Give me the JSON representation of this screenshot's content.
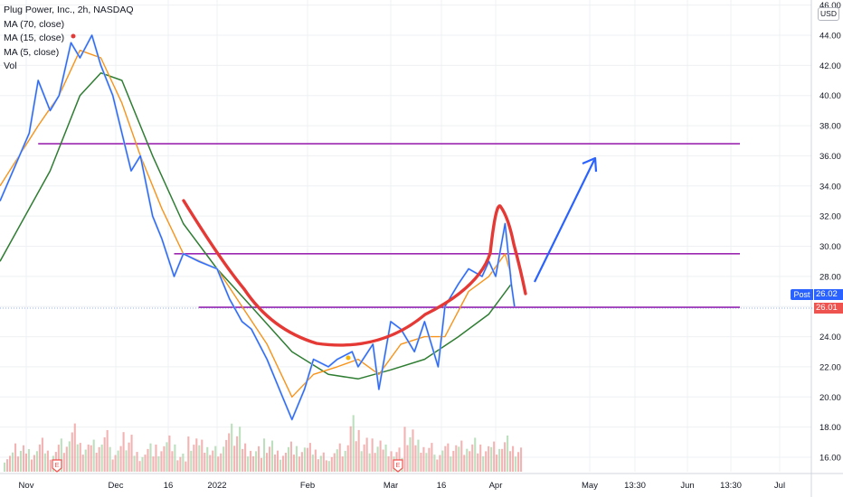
{
  "legend": {
    "symbol": "Plug Power, Inc., 2h, NASDAQ",
    "ma70": "MA (70, close)",
    "ma15": "MA (15, close)",
    "ma5": "MA (5, close)",
    "vol": "Vol"
  },
  "currency_button": "USD",
  "price_tags": {
    "post_label": "Post",
    "post_value": "26.02",
    "last_value": "26.01"
  },
  "chart_data": {
    "type": "line",
    "symbol": "PLUG",
    "interval": "2h",
    "exchange": "NASDAQ",
    "ylim": [
      15,
      46
    ],
    "y_ticks": [
      "16.00",
      "18.00",
      "20.00",
      "22.00",
      "24.00",
      "26.00",
      "28.00",
      "30.00",
      "32.00",
      "34.00",
      "36.00",
      "38.00",
      "40.00",
      "42.00",
      "44.00",
      "46.00"
    ],
    "x_ticks": [
      "Nov",
      "Dec",
      "16",
      "2022",
      "Feb",
      "Mar",
      "16",
      "Apr",
      "May",
      "13:30",
      "Jun",
      "13:30",
      "Jul"
    ],
    "grid": true,
    "colors": {
      "price": "#2962ff",
      "ma70": "#2e7d32",
      "ma15": "#f7931a",
      "ma5": "#a1c4e8",
      "horizontal_lines": "#9c27b0",
      "cup_pattern": "#e53935",
      "projection_arrow": "#2962ff",
      "vol_up": "#a5d6a7",
      "vol_down": "#ef9a9a"
    },
    "price": [
      {
        "x": "Oct 29",
        "y": 33.0
      },
      {
        "x": "Nov 2",
        "y": 37.5
      },
      {
        "x": "Nov 5",
        "y": 41.0
      },
      {
        "x": "Nov 9",
        "y": 39.0
      },
      {
        "x": "Nov 12",
        "y": 40.0
      },
      {
        "x": "Nov 16",
        "y": 43.5
      },
      {
        "x": "Nov 19",
        "y": 42.5
      },
      {
        "x": "Nov 23",
        "y": 44.0
      },
      {
        "x": "Nov 26",
        "y": 42.0
      },
      {
        "x": "Nov 30",
        "y": 40.0
      },
      {
        "x": "Dec 3",
        "y": 37.5
      },
      {
        "x": "Dec 6",
        "y": 35.0
      },
      {
        "x": "Dec 9",
        "y": 36.0
      },
      {
        "x": "Dec 13",
        "y": 32.0
      },
      {
        "x": "Dec 16",
        "y": 30.5
      },
      {
        "x": "Dec 20",
        "y": 28.0
      },
      {
        "x": "Dec 23",
        "y": 29.5
      },
      {
        "x": "Dec 28",
        "y": 29.0
      },
      {
        "x": "Jan 3",
        "y": 28.5
      },
      {
        "x": "Jan 7",
        "y": 26.5
      },
      {
        "x": "Jan 11",
        "y": 25.0
      },
      {
        "x": "Jan 14",
        "y": 24.5
      },
      {
        "x": "Jan 19",
        "y": 22.5
      },
      {
        "x": "Jan 24",
        "y": 20.0
      },
      {
        "x": "Jan 27",
        "y": 18.5
      },
      {
        "x": "Jan 31",
        "y": 20.5
      },
      {
        "x": "Feb 3",
        "y": 22.5
      },
      {
        "x": "Feb 8",
        "y": 22.0
      },
      {
        "x": "Feb 11",
        "y": 22.5
      },
      {
        "x": "Feb 16",
        "y": 23.0
      },
      {
        "x": "Feb 18",
        "y": 22.0
      },
      {
        "x": "Feb 23",
        "y": 23.5
      },
      {
        "x": "Feb 25",
        "y": 20.5
      },
      {
        "x": "Mar 1",
        "y": 25.0
      },
      {
        "x": "Mar 4",
        "y": 24.5
      },
      {
        "x": "Mar 8",
        "y": 23.0
      },
      {
        "x": "Mar 11",
        "y": 25.0
      },
      {
        "x": "Mar 15",
        "y": 22.0
      },
      {
        "x": "Mar 17",
        "y": 26.0
      },
      {
        "x": "Mar 21",
        "y": 27.5
      },
      {
        "x": "Mar 24",
        "y": 28.5
      },
      {
        "x": "Mar 28",
        "y": 28.0
      },
      {
        "x": "Mar 30",
        "y": 29.0
      },
      {
        "x": "Apr 1",
        "y": 28.0
      },
      {
        "x": "Apr 4",
        "y": 31.5
      },
      {
        "x": "Apr 5",
        "y": 29.5
      },
      {
        "x": "Apr 6",
        "y": 27.5
      },
      {
        "x": "Apr 7",
        "y": 26.0
      }
    ],
    "ma70": [
      {
        "x": "Oct 29",
        "y": 29.0
      },
      {
        "x": "Nov 9",
        "y": 35.0
      },
      {
        "x": "Nov 19",
        "y": 40.0
      },
      {
        "x": "Nov 26",
        "y": 41.5
      },
      {
        "x": "Dec 3",
        "y": 41.0
      },
      {
        "x": "Dec 13",
        "y": 36.0
      },
      {
        "x": "Dec 23",
        "y": 31.5
      },
      {
        "x": "Jan 3",
        "y": 28.5
      },
      {
        "x": "Jan 14",
        "y": 26.0
      },
      {
        "x": "Jan 27",
        "y": 23.0
      },
      {
        "x": "Feb 8",
        "y": 21.5
      },
      {
        "x": "Feb 18",
        "y": 21.2
      },
      {
        "x": "Mar 1",
        "y": 21.8
      },
      {
        "x": "Mar 11",
        "y": 22.5
      },
      {
        "x": "Mar 21",
        "y": 24.0
      },
      {
        "x": "Mar 30",
        "y": 25.5
      },
      {
        "x": "Apr 6",
        "y": 27.5
      }
    ],
    "ma15": [
      {
        "x": "Oct 29",
        "y": 34.0
      },
      {
        "x": "Nov 5",
        "y": 38.0
      },
      {
        "x": "Nov 12",
        "y": 40.0
      },
      {
        "x": "Nov 19",
        "y": 43.0
      },
      {
        "x": "Nov 26",
        "y": 42.5
      },
      {
        "x": "Dec 3",
        "y": 39.5
      },
      {
        "x": "Dec 9",
        "y": 36.0
      },
      {
        "x": "Dec 16",
        "y": 32.5
      },
      {
        "x": "Dec 23",
        "y": 29.5
      },
      {
        "x": "Jan 3",
        "y": 28.5
      },
      {
        "x": "Jan 11",
        "y": 26.0
      },
      {
        "x": "Jan 19",
        "y": 23.5
      },
      {
        "x": "Jan 27",
        "y": 20.0
      },
      {
        "x": "Feb 3",
        "y": 21.5
      },
      {
        "x": "Feb 11",
        "y": 22.0
      },
      {
        "x": "Feb 18",
        "y": 22.5
      },
      {
        "x": "Feb 25",
        "y": 21.5
      },
      {
        "x": "Mar 4",
        "y": 23.5
      },
      {
        "x": "Mar 11",
        "y": 24.0
      },
      {
        "x": "Mar 17",
        "y": 24.0
      },
      {
        "x": "Mar 24",
        "y": 27.0
      },
      {
        "x": "Mar 30",
        "y": 28.0
      },
      {
        "x": "Apr 4",
        "y": 29.5
      },
      {
        "x": "Apr 6",
        "y": 28.0
      }
    ],
    "horizontal_lines": [
      {
        "y": 36.8,
        "from": "Nov 5",
        "to": "Jul 1"
      },
      {
        "y": 29.5,
        "from": "Dec 20",
        "to": "Jul 1"
      },
      {
        "y": 25.95,
        "from": "Dec 28",
        "to": "Jul 1"
      }
    ],
    "volume_relative": [
      0.3,
      0.5,
      0.4,
      0.6,
      0.35,
      0.55,
      0.8,
      0.45,
      0.5,
      0.65,
      0.4,
      0.7,
      0.35,
      0.5,
      0.45,
      0.6,
      0.3,
      0.55,
      0.5,
      0.4,
      0.6,
      0.85,
      0.5,
      0.45,
      0.55,
      0.35,
      0.5,
      0.4,
      0.45,
      0.3,
      0.35,
      0.5,
      1.0,
      0.6,
      0.55,
      0.45,
      0.4,
      0.7,
      0.5,
      0.45,
      0.4,
      0.5,
      0.55,
      0.6,
      0.45,
      0.5,
      0.6,
      0.4
    ]
  }
}
